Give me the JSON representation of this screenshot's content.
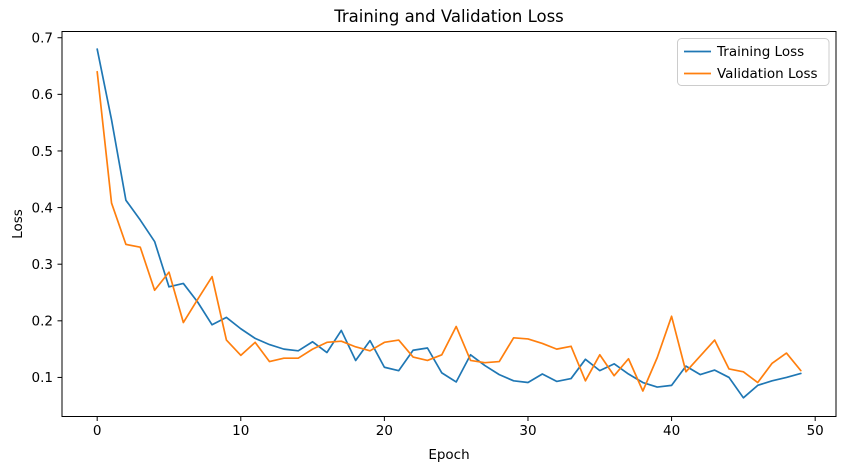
{
  "chart_data": {
    "type": "line",
    "title": "Training and Validation Loss",
    "xlabel": "Epoch",
    "ylabel": "Loss",
    "grid": false,
    "legend_position": "upper right",
    "x_ticks": [
      0,
      10,
      20,
      30,
      40,
      50
    ],
    "y_ticks": [
      0.1,
      0.2,
      0.3,
      0.4,
      0.5,
      0.6,
      0.7
    ],
    "xlim": [
      -2.45,
      51.45
    ],
    "ylim": [
      0.031,
      0.711
    ],
    "x": [
      0,
      1,
      2,
      3,
      4,
      5,
      6,
      7,
      8,
      9,
      10,
      11,
      12,
      13,
      14,
      15,
      16,
      17,
      18,
      19,
      20,
      21,
      22,
      23,
      24,
      25,
      26,
      27,
      28,
      29,
      30,
      31,
      32,
      33,
      34,
      35,
      36,
      37,
      38,
      39,
      40,
      41,
      42,
      43,
      44,
      45,
      46,
      47,
      48,
      49
    ],
    "series": [
      {
        "name": "Training Loss",
        "color": "#1f77b4",
        "values": [
          0.68,
          0.555,
          0.413,
          0.378,
          0.34,
          0.26,
          0.266,
          0.233,
          0.193,
          0.206,
          0.186,
          0.169,
          0.158,
          0.15,
          0.147,
          0.163,
          0.144,
          0.183,
          0.13,
          0.165,
          0.118,
          0.112,
          0.148,
          0.152,
          0.108,
          0.092,
          0.14,
          0.121,
          0.105,
          0.094,
          0.091,
          0.106,
          0.093,
          0.098,
          0.132,
          0.112,
          0.124,
          0.106,
          0.091,
          0.083,
          0.086,
          0.12,
          0.105,
          0.113,
          0.1,
          0.064,
          0.086,
          0.094,
          0.1,
          0.107
        ]
      },
      {
        "name": "Validation Loss",
        "color": "#ff7f0e",
        "values": [
          0.64,
          0.408,
          0.335,
          0.33,
          0.254,
          0.286,
          0.197,
          0.238,
          0.278,
          0.166,
          0.139,
          0.162,
          0.128,
          0.134,
          0.134,
          0.15,
          0.162,
          0.164,
          0.154,
          0.147,
          0.162,
          0.166,
          0.136,
          0.13,
          0.14,
          0.19,
          0.13,
          0.126,
          0.128,
          0.17,
          0.168,
          0.16,
          0.15,
          0.155,
          0.094,
          0.14,
          0.103,
          0.133,
          0.076,
          0.135,
          0.208,
          0.11,
          0.138,
          0.166,
          0.115,
          0.11,
          0.091,
          0.125,
          0.143,
          0.112
        ]
      }
    ]
  }
}
